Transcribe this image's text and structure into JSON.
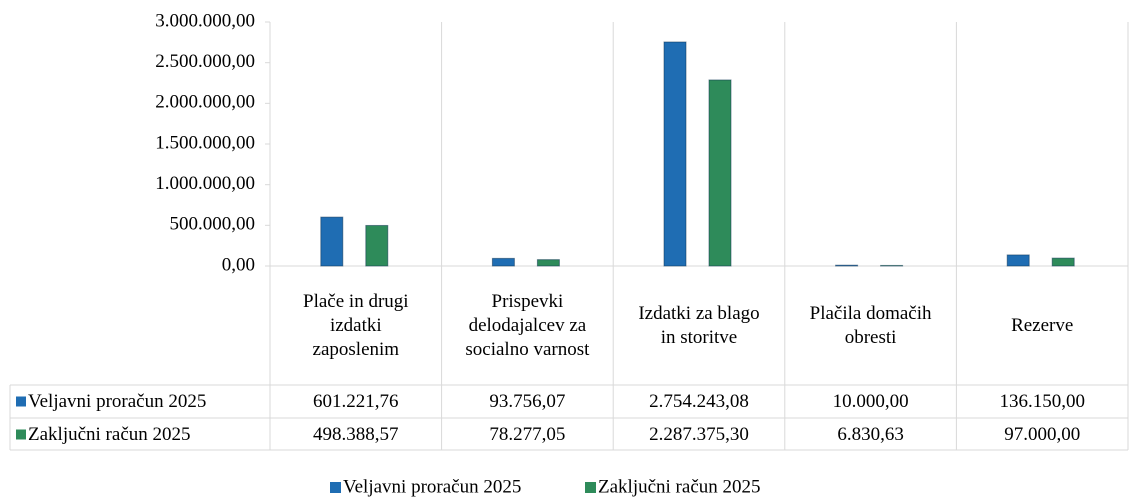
{
  "chart_data": {
    "type": "bar",
    "categories": [
      "Plače in drugi izdatki zaposlenim",
      "Prispevki delodajalcev za socialno varnost",
      "Izdatki za blago in storitve",
      "Plačila domačih obresti",
      "Rezerve"
    ],
    "series": [
      {
        "name": "Veljavni proračun 2025",
        "color": "#1f6db3",
        "values": [
          601221.76,
          93756.07,
          2754243.08,
          10000.0,
          136150.0
        ],
        "value_labels": [
          "601.221,76",
          "93.756,07",
          "2.754.243,08",
          "10.000,00",
          "136.150,00"
        ]
      },
      {
        "name": "Zaključni račun 2025",
        "color": "#2e8b5a",
        "values": [
          498388.57,
          78277.05,
          2287375.3,
          6830.63,
          97000.0
        ],
        "value_labels": [
          "498.388,57",
          "78.277,05",
          "2.287.375,30",
          "6.830,63",
          "97.000,00"
        ]
      }
    ],
    "ylim": [
      0,
      3000000
    ],
    "yticks": [
      {
        "value": 0,
        "label": "0,00"
      },
      {
        "value": 500000,
        "label": "500.000,00"
      },
      {
        "value": 1000000,
        "label": "1.000.000,00"
      },
      {
        "value": 1500000,
        "label": "1.500.000,00"
      },
      {
        "value": 2000000,
        "label": "2.000.000,00"
      },
      {
        "value": 2500000,
        "label": "2.500.000,00"
      },
      {
        "value": 3000000,
        "label": "3.000.000,00"
      }
    ],
    "legend": "bottom"
  }
}
